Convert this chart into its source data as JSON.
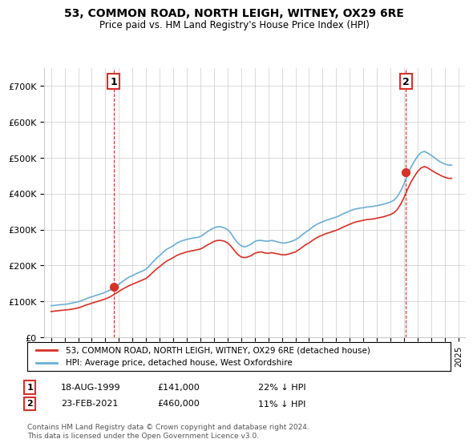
{
  "title": "53, COMMON ROAD, NORTH LEIGH, WITNEY, OX29 6RE",
  "subtitle": "Price paid vs. HM Land Registry's House Price Index (HPI)",
  "legend_line1": "53, COMMON ROAD, NORTH LEIGH, WITNEY, OX29 6RE (detached house)",
  "legend_line2": "HPI: Average price, detached house, West Oxfordshire",
  "footnote": "Contains HM Land Registry data © Crown copyright and database right 2024.\nThis data is licensed under the Open Government Licence v3.0.",
  "marker1_label": "1",
  "marker1_date": "18-AUG-1999",
  "marker1_price": "£141,000",
  "marker1_hpi": "22% ↓ HPI",
  "marker1_x": 1999.62,
  "marker1_y": 141000,
  "marker2_label": "2",
  "marker2_date": "23-FEB-2021",
  "marker2_price": "£460,000",
  "marker2_hpi": "11% ↓ HPI",
  "marker2_x": 2021.13,
  "marker2_y": 460000,
  "hpi_color": "#6baed6",
  "price_color": "#d73027",
  "marker_color": "#d73027",
  "background_color": "#ffffff",
  "grid_color": "#cccccc",
  "ylim": [
    0,
    750000
  ],
  "xlim": [
    1994.5,
    2025.5
  ],
  "yticks": [
    0,
    100000,
    200000,
    300000,
    400000,
    500000,
    600000,
    700000
  ],
  "ytick_labels": [
    "£0",
    "£100K",
    "£200K",
    "£300K",
    "£400K",
    "£500K",
    "£600K",
    "£700K"
  ],
  "xticks": [
    1995,
    1996,
    1997,
    1998,
    1999,
    2000,
    2001,
    2002,
    2003,
    2004,
    2005,
    2006,
    2007,
    2008,
    2009,
    2010,
    2011,
    2012,
    2013,
    2014,
    2015,
    2016,
    2017,
    2018,
    2019,
    2020,
    2021,
    2022,
    2023,
    2024,
    2025
  ],
  "hpi_data_x": [
    1995.0,
    1995.25,
    1995.5,
    1995.75,
    1996.0,
    1996.25,
    1996.5,
    1996.75,
    1997.0,
    1997.25,
    1997.5,
    1997.75,
    1998.0,
    1998.25,
    1998.5,
    1998.75,
    1999.0,
    1999.25,
    1999.5,
    1999.75,
    2000.0,
    2000.25,
    2000.5,
    2000.75,
    2001.0,
    2001.25,
    2001.5,
    2001.75,
    2002.0,
    2002.25,
    2002.5,
    2002.75,
    2003.0,
    2003.25,
    2003.5,
    2003.75,
    2004.0,
    2004.25,
    2004.5,
    2004.75,
    2005.0,
    2005.25,
    2005.5,
    2005.75,
    2006.0,
    2006.25,
    2006.5,
    2006.75,
    2007.0,
    2007.25,
    2007.5,
    2007.75,
    2008.0,
    2008.25,
    2008.5,
    2008.75,
    2009.0,
    2009.25,
    2009.5,
    2009.75,
    2010.0,
    2010.25,
    2010.5,
    2010.75,
    2011.0,
    2011.25,
    2011.5,
    2011.75,
    2012.0,
    2012.25,
    2012.5,
    2012.75,
    2013.0,
    2013.25,
    2013.5,
    2013.75,
    2014.0,
    2014.25,
    2014.5,
    2014.75,
    2015.0,
    2015.25,
    2015.5,
    2015.75,
    2016.0,
    2016.25,
    2016.5,
    2016.75,
    2017.0,
    2017.25,
    2017.5,
    2017.75,
    2018.0,
    2018.25,
    2018.5,
    2018.75,
    2019.0,
    2019.25,
    2019.5,
    2019.75,
    2020.0,
    2020.25,
    2020.5,
    2020.75,
    2021.0,
    2021.25,
    2021.5,
    2021.75,
    2022.0,
    2022.25,
    2022.5,
    2022.75,
    2023.0,
    2023.25,
    2023.5,
    2023.75,
    2024.0,
    2024.25,
    2024.5
  ],
  "hpi_data_y": [
    88000,
    89000,
    90000,
    91000,
    92000,
    93000,
    95000,
    97000,
    99000,
    102000,
    106000,
    110000,
    113000,
    116000,
    119000,
    122000,
    126000,
    130000,
    135000,
    141000,
    148000,
    155000,
    162000,
    168000,
    172000,
    177000,
    181000,
    185000,
    190000,
    199000,
    210000,
    220000,
    228000,
    237000,
    245000,
    250000,
    255000,
    262000,
    267000,
    270000,
    273000,
    275000,
    277000,
    278000,
    281000,
    287000,
    294000,
    300000,
    305000,
    308000,
    308000,
    305000,
    300000,
    290000,
    275000,
    263000,
    255000,
    252000,
    255000,
    260000,
    267000,
    270000,
    270000,
    268000,
    268000,
    270000,
    268000,
    265000,
    263000,
    263000,
    265000,
    268000,
    272000,
    278000,
    286000,
    293000,
    299000,
    307000,
    313000,
    318000,
    322000,
    326000,
    329000,
    332000,
    335000,
    339000,
    344000,
    348000,
    352000,
    356000,
    358000,
    360000,
    361000,
    363000,
    364000,
    365000,
    367000,
    369000,
    371000,
    374000,
    377000,
    382000,
    392000,
    408000,
    428000,
    452000,
    473000,
    490000,
    505000,
    515000,
    518000,
    513000,
    507000,
    500000,
    493000,
    487000,
    483000,
    480000,
    480000
  ],
  "price_data_x": [
    1995.0,
    1995.25,
    1995.5,
    1995.75,
    1996.0,
    1996.25,
    1996.5,
    1996.75,
    1997.0,
    1997.25,
    1997.5,
    1997.75,
    1998.0,
    1998.25,
    1998.5,
    1998.75,
    1999.0,
    1999.25,
    1999.5,
    1999.75,
    2000.0,
    2000.25,
    2000.5,
    2000.75,
    2001.0,
    2001.25,
    2001.5,
    2001.75,
    2002.0,
    2002.25,
    2002.5,
    2002.75,
    2003.0,
    2003.25,
    2003.5,
    2003.75,
    2004.0,
    2004.25,
    2004.5,
    2004.75,
    2005.0,
    2005.25,
    2005.5,
    2005.75,
    2006.0,
    2006.25,
    2006.5,
    2006.75,
    2007.0,
    2007.25,
    2007.5,
    2007.75,
    2008.0,
    2008.25,
    2008.5,
    2008.75,
    2009.0,
    2009.25,
    2009.5,
    2009.75,
    2010.0,
    2010.25,
    2010.5,
    2010.75,
    2011.0,
    2011.25,
    2011.5,
    2011.75,
    2012.0,
    2012.25,
    2012.5,
    2012.75,
    2013.0,
    2013.25,
    2013.5,
    2013.75,
    2014.0,
    2014.25,
    2014.5,
    2014.75,
    2015.0,
    2015.25,
    2015.5,
    2015.75,
    2016.0,
    2016.25,
    2016.5,
    2016.75,
    2017.0,
    2017.25,
    2017.5,
    2017.75,
    2018.0,
    2018.25,
    2018.5,
    2018.75,
    2019.0,
    2019.25,
    2019.5,
    2019.75,
    2020.0,
    2020.25,
    2020.5,
    2020.75,
    2021.0,
    2021.25,
    2021.5,
    2021.75,
    2022.0,
    2022.25,
    2022.5,
    2022.75,
    2023.0,
    2023.25,
    2023.5,
    2023.75,
    2024.0,
    2024.25,
    2024.5
  ],
  "price_data_y": [
    72000,
    73000,
    74000,
    75000,
    76000,
    77000,
    78000,
    80000,
    82000,
    85000,
    89000,
    92000,
    95000,
    98000,
    101000,
    104000,
    107000,
    111000,
    116000,
    122000,
    128000,
    134000,
    139000,
    144000,
    148000,
    152000,
    156000,
    160000,
    164000,
    172000,
    181000,
    190000,
    197000,
    205000,
    212000,
    217000,
    222000,
    228000,
    232000,
    235000,
    238000,
    240000,
    242000,
    244000,
    246000,
    251000,
    257000,
    262000,
    267000,
    270000,
    270000,
    268000,
    263000,
    254000,
    242000,
    231000,
    224000,
    222000,
    224000,
    228000,
    234000,
    237000,
    238000,
    235000,
    234000,
    236000,
    234000,
    232000,
    230000,
    230000,
    232000,
    235000,
    238000,
    244000,
    251000,
    258000,
    263000,
    270000,
    276000,
    281000,
    285000,
    289000,
    292000,
    295000,
    298000,
    302000,
    307000,
    311000,
    315000,
    319000,
    322000,
    324000,
    326000,
    328000,
    329000,
    330000,
    332000,
    334000,
    336000,
    339000,
    342000,
    347000,
    356000,
    371000,
    390000,
    412000,
    432000,
    448000,
    462000,
    472000,
    476000,
    472000,
    466000,
    460000,
    455000,
    450000,
    446000,
    443000,
    443000
  ]
}
